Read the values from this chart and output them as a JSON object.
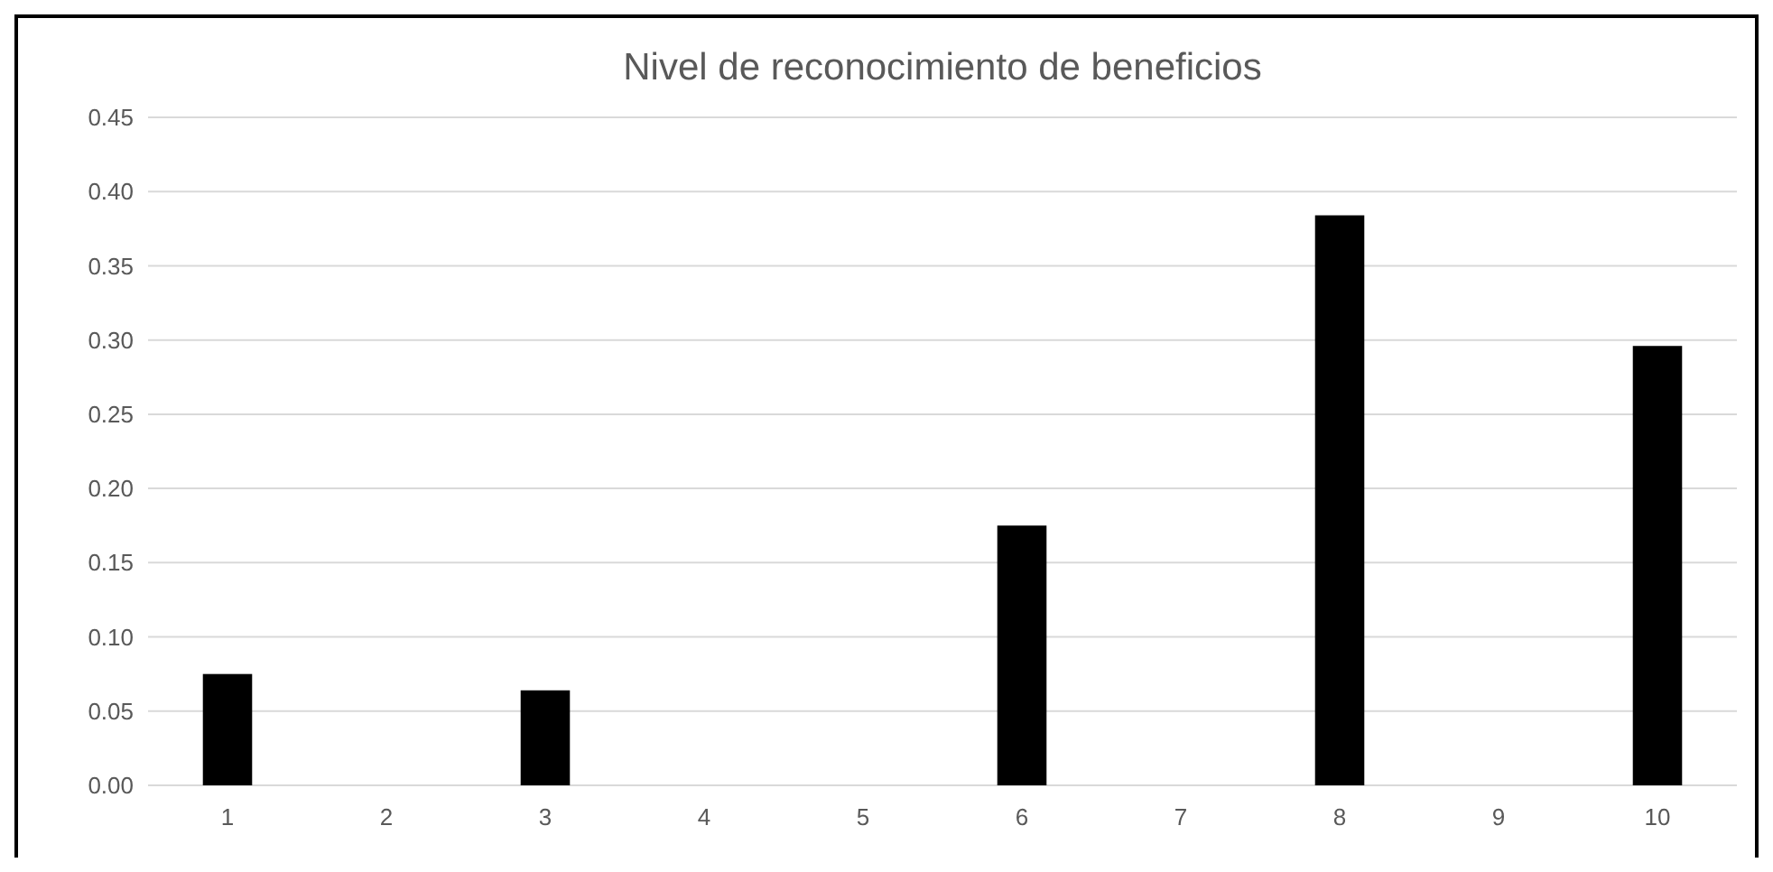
{
  "chart_data": {
    "type": "bar",
    "title": "Nivel de reconocimiento de beneficios",
    "categories": [
      "1",
      "2",
      "3",
      "4",
      "5",
      "6",
      "7",
      "8",
      "9",
      "10"
    ],
    "values": [
      0.075,
      0,
      0.064,
      0,
      0,
      0.175,
      0,
      0.384,
      0,
      0.296
    ],
    "color": "#000000",
    "ylim": [
      0,
      0.45
    ],
    "yticks": [
      {
        "value": 0,
        "label": "0.00"
      },
      {
        "value": 0.05,
        "label": "0.05"
      },
      {
        "value": 0.1,
        "label": "0.10"
      },
      {
        "value": 0.15,
        "label": "0.15"
      },
      {
        "value": 0.2,
        "label": "0.20"
      },
      {
        "value": 0.25,
        "label": "0.25"
      },
      {
        "value": 0.3,
        "label": "0.30"
      },
      {
        "value": 0.35,
        "label": "0.35"
      },
      {
        "value": 0.4,
        "label": "0.40"
      },
      {
        "value": 0.45,
        "label": "0.45"
      }
    ],
    "grid": "y"
  }
}
